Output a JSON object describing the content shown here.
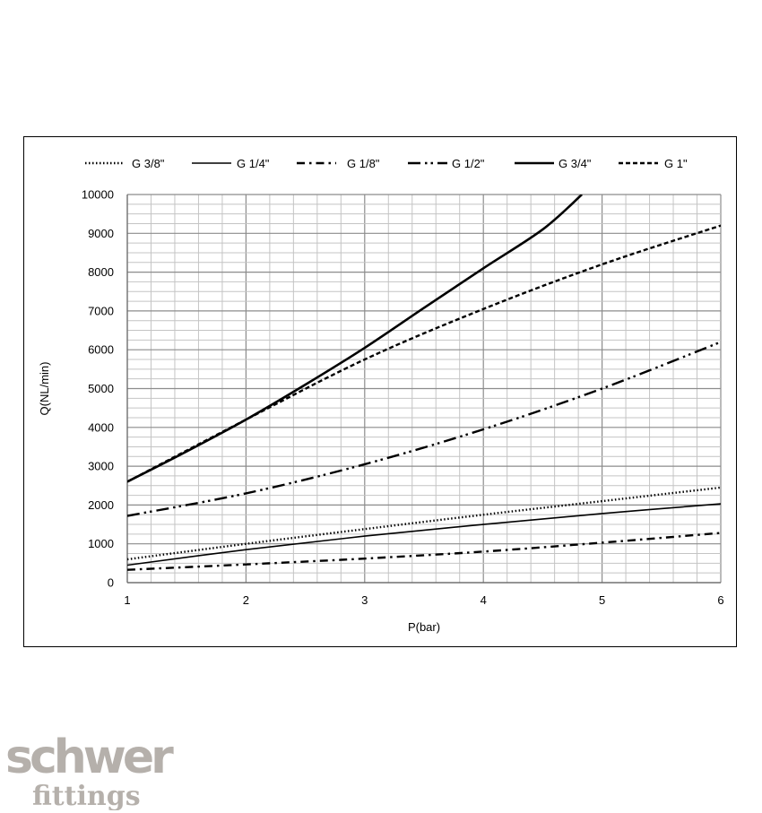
{
  "chart_data": {
    "type": "line",
    "xlabel": "P(bar)",
    "ylabel": "Q(NL/min)",
    "xlim": [
      1,
      6
    ],
    "ylim": [
      0,
      10000
    ],
    "xticks": [
      1,
      2,
      3,
      4,
      5,
      6
    ],
    "yticks": [
      0,
      1000,
      2000,
      3000,
      4000,
      5000,
      6000,
      7000,
      8000,
      9000,
      10000
    ],
    "grid": true,
    "legend_position": "top",
    "series": [
      {
        "name": "G 3/8\"",
        "style": "dotted",
        "x": [
          1,
          2,
          3,
          4,
          5,
          6
        ],
        "y": [
          600,
          1000,
          1380,
          1750,
          2100,
          2450
        ]
      },
      {
        "name": "G  1/4\"",
        "style": "solid-thin",
        "x": [
          1,
          2,
          3,
          4,
          5,
          6
        ],
        "y": [
          450,
          850,
          1200,
          1500,
          1780,
          2030
        ]
      },
      {
        "name": "G 1/8\"",
        "style": "dash-dot",
        "x": [
          1,
          2,
          3,
          4,
          5,
          6
        ],
        "y": [
          330,
          470,
          620,
          800,
          1030,
          1280
        ]
      },
      {
        "name": "G 1/2\"",
        "style": "dash-dot-dot",
        "x": [
          1,
          2,
          3,
          4,
          5,
          6
        ],
        "y": [
          1720,
          2300,
          3050,
          3950,
          5000,
          6200
        ]
      },
      {
        "name": "G 3/4\"",
        "style": "solid-thick",
        "x": [
          1,
          1.5,
          2,
          2.5,
          3,
          3.5,
          4,
          4.5,
          4.83
        ],
        "y": [
          2600,
          3380,
          4200,
          5100,
          6050,
          7080,
          8100,
          9100,
          10000
        ]
      },
      {
        "name": "G 1\"",
        "style": "dashed",
        "x": [
          1,
          2,
          3,
          4,
          5,
          6
        ],
        "y": [
          2600,
          4200,
          5750,
          7050,
          8200,
          9200
        ]
      }
    ]
  },
  "logo": {
    "line1": "schwer",
    "line2": "fittings",
    "color": "#b5b0ab"
  }
}
